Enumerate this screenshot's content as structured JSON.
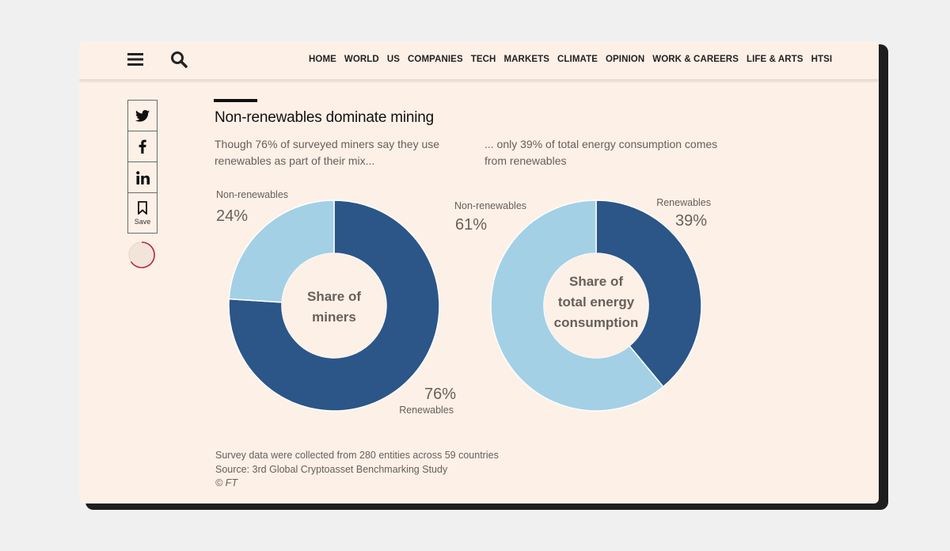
{
  "nav": {
    "items": [
      "HOME",
      "WORLD",
      "US",
      "COMPANIES",
      "TECH",
      "MARKETS",
      "CLIMATE",
      "OPINION",
      "WORK & CAREERS",
      "LIFE & ARTS",
      "HTSI"
    ]
  },
  "share": {
    "save_label": "Save"
  },
  "article": {
    "title": "Non-renewables dominate mining",
    "subtitle_left": "Though 76% of surveyed miners say they use renewables as part of their mix...",
    "subtitle_right": "... only 39% of total energy consumption comes from renewables",
    "footnote": "Survey data were collected from 280 entities across 59 countries",
    "source": "Source: 3rd Global Cryptoasset Benchmarking Study",
    "copyright": "© FT"
  },
  "colors": {
    "renewables": "#2b5687",
    "non_renewables": "#a3d0e5",
    "background": "#fdf0e7"
  },
  "chart_data": [
    {
      "type": "pie",
      "center_label": [
        "Share of",
        "miners"
      ],
      "slices": [
        {
          "label": "Renewables",
          "value": 76,
          "display": "76%",
          "color": "#2b5687"
        },
        {
          "label": "Non-renewables",
          "value": 24,
          "display": "24%",
          "color": "#a3d0e5"
        }
      ]
    },
    {
      "type": "pie",
      "center_label": [
        "Share of",
        "total energy",
        "consumption"
      ],
      "slices": [
        {
          "label": "Renewables",
          "value": 39,
          "display": "39%",
          "color": "#2b5687"
        },
        {
          "label": "Non-renewables",
          "value": 61,
          "display": "61%",
          "color": "#a3d0e5"
        }
      ]
    }
  ]
}
